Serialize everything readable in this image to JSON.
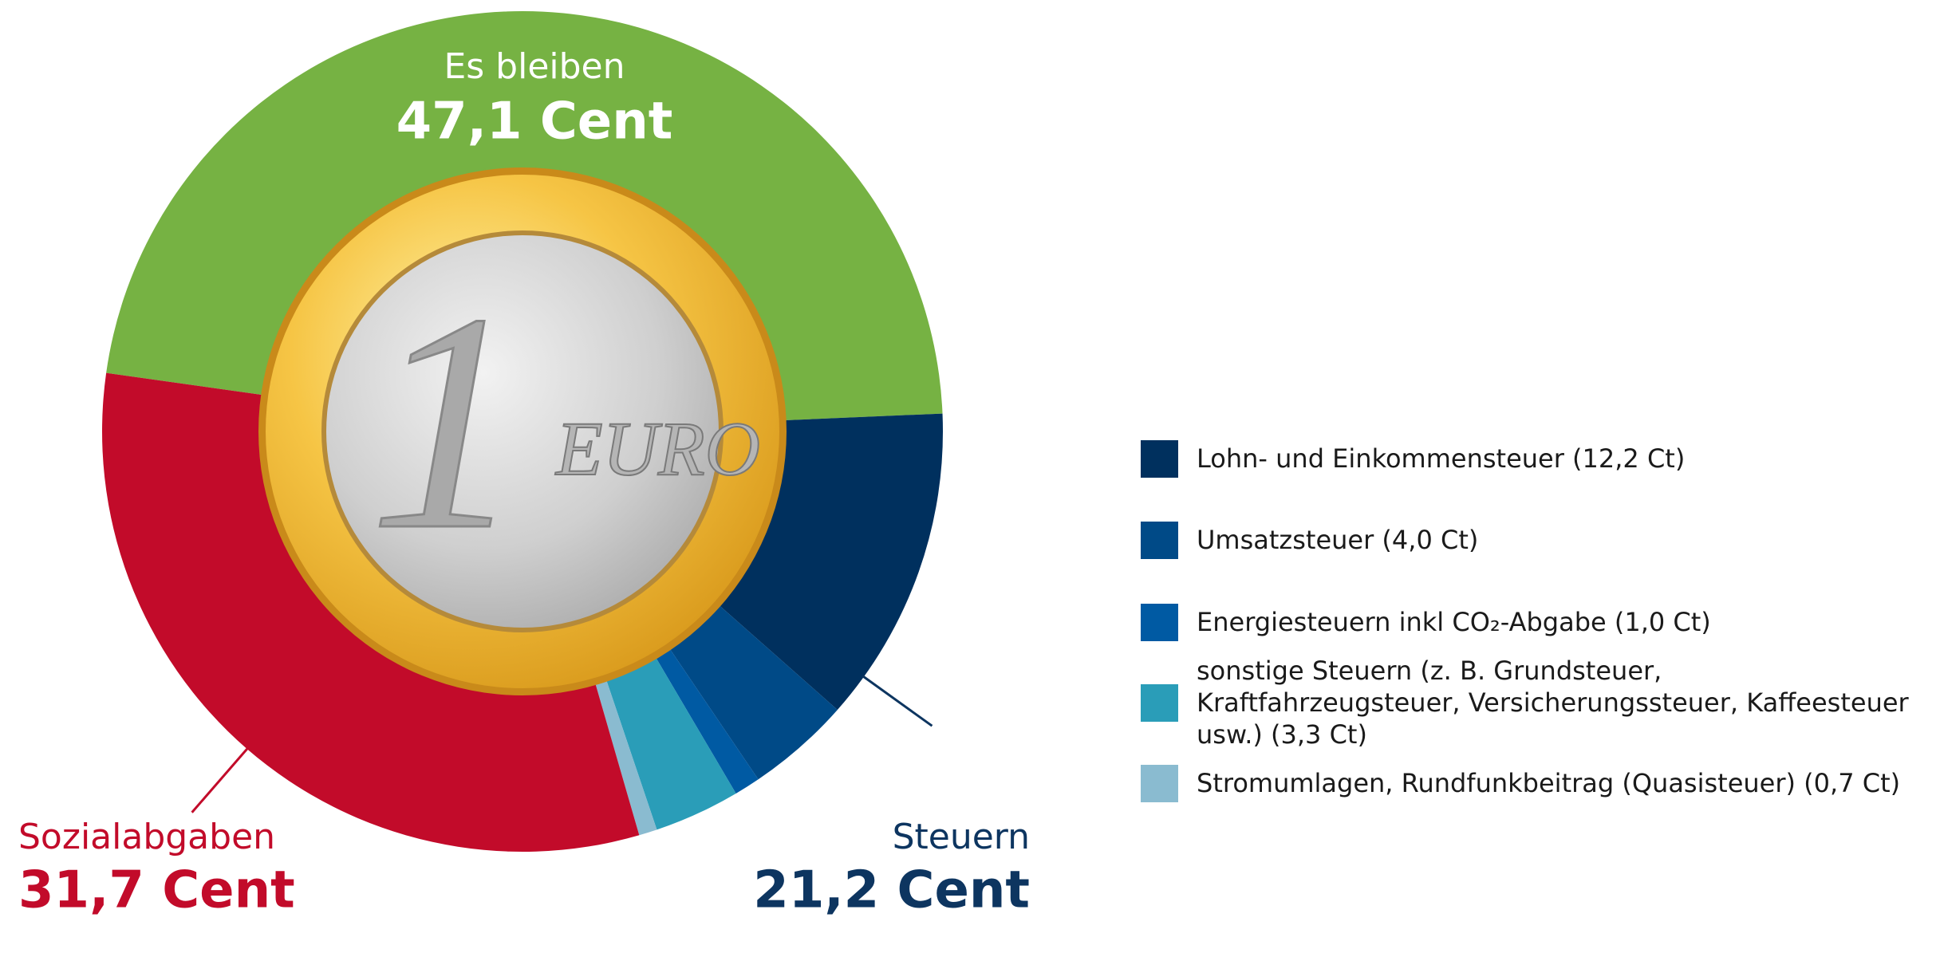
{
  "chart_data": {
    "type": "donut",
    "categories": [
      "Es bleiben",
      "Lohn- und Einkommensteuer (12,2 Ct)",
      "Umsatzsteuer (4,0 Ct)",
      "Energiesteuern inkl CO₂-Abgabe (1,0 Ct)",
      "sonstige Steuern (z. B. Grundsteuer, Kraftfahrzeugsteuer, Versicherungssteuer, Kaffeesteuer usw.) (3,3 Ct)",
      "Stromumlagen, Rundfunkbeitrag (Quasisteuer) (0,7 Ct)",
      "Sozialabgaben"
    ],
    "values": [
      47.1,
      12.2,
      4.0,
      1.0,
      3.3,
      0.7,
      31.7
    ],
    "value_labels": [
      "47,1 Cent",
      null,
      null,
      null,
      null,
      null,
      "31,7 Cent"
    ],
    "colors": [
      "#76b243",
      "#00305e",
      "#004a87",
      "#005aa3",
      "#2a9db8",
      "#8abbd0",
      "#c20b2a"
    ],
    "groups": [
      {
        "name": "Steuern",
        "value": 21.2,
        "value_label": "21,2 Cent"
      }
    ]
  },
  "coin": {
    "denomination": "1",
    "currency": "EURO"
  }
}
